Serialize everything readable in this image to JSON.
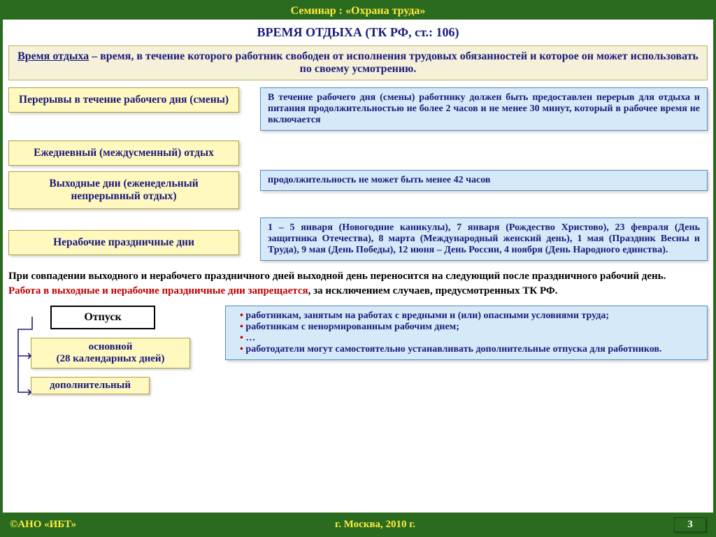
{
  "header": {
    "title": "Семинар : «Охрана труда»"
  },
  "title": "ВРЕМЯ ОТДЫХА (ТК РФ, ст.: 106)",
  "definition": {
    "term": "Время отдыха",
    "body": " – время, в течение которого работник свободен от исполнения трудовых обязанностей и которое он может использовать по своему усмотрению."
  },
  "rows": [
    {
      "label": "Перерывы в течение рабочего дня (смены)",
      "note": "В течение рабочего дня (смены) работнику должен быть предоставлен перерыв для отдыха и питания продолжительностью не более 2 часов и не менее 30 минут, который в рабочее время не включается"
    },
    {
      "label": "Ежедневный (междусменный) отдых",
      "note": ""
    },
    {
      "label": "Выходные дни (еженедельный непрерывный отдых)",
      "note": "продолжительность не может быть менее 42 часов"
    },
    {
      "label": "Нерабочие праздничные дни",
      "note": "1 – 5 января (Новогодние каникулы), 7 января (Рождество Христово),  23 февраля (День защитника Отечества), 8 марта (Международный женский день), 1 мая (Праздник Весны и Труда), 9 мая (День Победы), 12 июня – День России, 4 ноября (День Народного единства)."
    }
  ],
  "para1": "При совпадении выходного и нерабочего праздничного дней выходной день переносится на следующий после праздничного рабочий день.",
  "para2": {
    "red": "Работа в выходные и нерабочие праздничные дни запрещается",
    "black": ", за исключением случаев, предусмотренных ТК РФ."
  },
  "vacation": {
    "title": "Отпуск",
    "main": "основной\n(28 календарных дней)",
    "extra": "дополнительный",
    "bullets": [
      "работникам, занятым на работах с вредными и (или) опасными условиями труда;",
      "работникам с ненормированным рабочим днем;",
      "…",
      "работодатели могут самостоятельно устанавливать дополнительные отпуска для работников."
    ]
  },
  "footer": {
    "org": "©АНО «ИБТ»",
    "place": "г. Москва,  2010 г.",
    "page": "3"
  },
  "colors": {
    "frame_border": "#2a6b1f",
    "header_bg": "#2a6b1f",
    "header_text": "#ffeb3b",
    "yellow_box_bg": "#fff9c0",
    "blue_box_bg": "#d6e9f8",
    "def_bg": "#f5f0d8",
    "text_blue": "#1a1a7a",
    "text_red": "#c00000"
  }
}
